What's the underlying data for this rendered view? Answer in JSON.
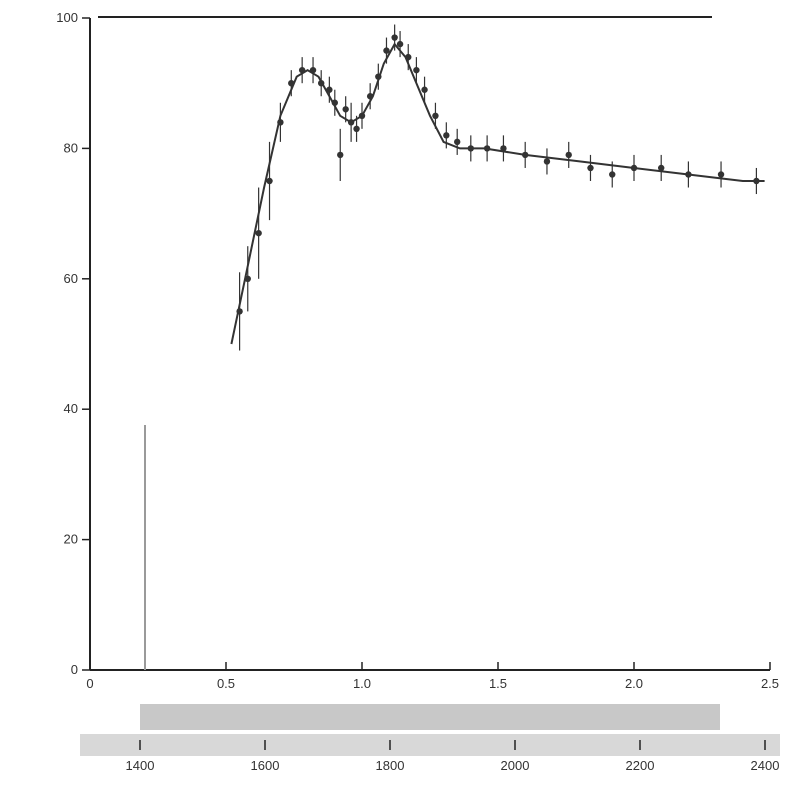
{
  "chart_data": {
    "type": "scatter",
    "title": "",
    "ylabel": "",
    "xlabel_top": "",
    "xlabel_bottom": "",
    "x_ticks_top": [
      "0",
      "0.5",
      "1.0",
      "1.5",
      "2.0",
      "2.5"
    ],
    "x_ticks_bottom": [
      "1400",
      "1600",
      "1800",
      "2000",
      "2200",
      "2400"
    ],
    "y_ticks": [
      "0",
      "20",
      "40",
      "60",
      "80",
      "100"
    ],
    "xlim": [
      0,
      2.5
    ],
    "ylim": [
      0,
      100
    ],
    "series": [
      {
        "points": [
          {
            "x": 0.55,
            "y": 55,
            "err": 6
          },
          {
            "x": 0.58,
            "y": 60,
            "err": 5
          },
          {
            "x": 0.62,
            "y": 67,
            "err": 7
          },
          {
            "x": 0.66,
            "y": 75,
            "err": 6
          },
          {
            "x": 0.7,
            "y": 84,
            "err": 3
          },
          {
            "x": 0.74,
            "y": 90,
            "err": 2
          },
          {
            "x": 0.78,
            "y": 92,
            "err": 2
          },
          {
            "x": 0.82,
            "y": 92,
            "err": 2
          },
          {
            "x": 0.85,
            "y": 90,
            "err": 2
          },
          {
            "x": 0.88,
            "y": 89,
            "err": 2
          },
          {
            "x": 0.9,
            "y": 87,
            "err": 2
          },
          {
            "x": 0.92,
            "y": 79,
            "err": 4
          },
          {
            "x": 0.94,
            "y": 86,
            "err": 2
          },
          {
            "x": 0.96,
            "y": 84,
            "err": 3
          },
          {
            "x": 0.98,
            "y": 83,
            "err": 2
          },
          {
            "x": 1.0,
            "y": 85,
            "err": 2
          },
          {
            "x": 1.03,
            "y": 88,
            "err": 2
          },
          {
            "x": 1.06,
            "y": 91,
            "err": 2
          },
          {
            "x": 1.09,
            "y": 95,
            "err": 2
          },
          {
            "x": 1.12,
            "y": 97,
            "err": 2
          },
          {
            "x": 1.14,
            "y": 96,
            "err": 2
          },
          {
            "x": 1.17,
            "y": 94,
            "err": 2
          },
          {
            "x": 1.2,
            "y": 92,
            "err": 2
          },
          {
            "x": 1.23,
            "y": 89,
            "err": 2
          },
          {
            "x": 1.27,
            "y": 85,
            "err": 2
          },
          {
            "x": 1.31,
            "y": 82,
            "err": 2
          },
          {
            "x": 1.35,
            "y": 81,
            "err": 2
          },
          {
            "x": 1.4,
            "y": 80,
            "err": 2
          },
          {
            "x": 1.46,
            "y": 80,
            "err": 2
          },
          {
            "x": 1.52,
            "y": 80,
            "err": 2
          },
          {
            "x": 1.6,
            "y": 79,
            "err": 2
          },
          {
            "x": 1.68,
            "y": 78,
            "err": 2
          },
          {
            "x": 1.76,
            "y": 79,
            "err": 2
          },
          {
            "x": 1.84,
            "y": 77,
            "err": 2
          },
          {
            "x": 1.92,
            "y": 76,
            "err": 2
          },
          {
            "x": 2.0,
            "y": 77,
            "err": 2
          },
          {
            "x": 2.1,
            "y": 77,
            "err": 2
          },
          {
            "x": 2.2,
            "y": 76,
            "err": 2
          },
          {
            "x": 2.32,
            "y": 76,
            "err": 2
          },
          {
            "x": 2.45,
            "y": 75,
            "err": 2
          }
        ]
      }
    ],
    "fit_curve": {
      "x": [
        0.52,
        0.58,
        0.64,
        0.7,
        0.76,
        0.8,
        0.84,
        0.88,
        0.92,
        0.96,
        1.0,
        1.04,
        1.08,
        1.12,
        1.16,
        1.2,
        1.25,
        1.3,
        1.36,
        1.45,
        1.6,
        1.8,
        2.0,
        2.2,
        2.4,
        2.48
      ],
      "y": [
        50,
        62,
        74,
        85,
        91,
        92,
        91,
        88,
        85,
        84,
        85,
        88,
        93,
        96,
        94,
        90,
        85,
        81,
        80,
        80,
        79,
        78,
        77,
        76,
        75,
        75
      ]
    },
    "grid": false,
    "legend_position": "center",
    "legend_entries": [],
    "colors": {
      "marks": "#333333",
      "axis": "#222222",
      "rule": "#9a9a9a"
    }
  }
}
